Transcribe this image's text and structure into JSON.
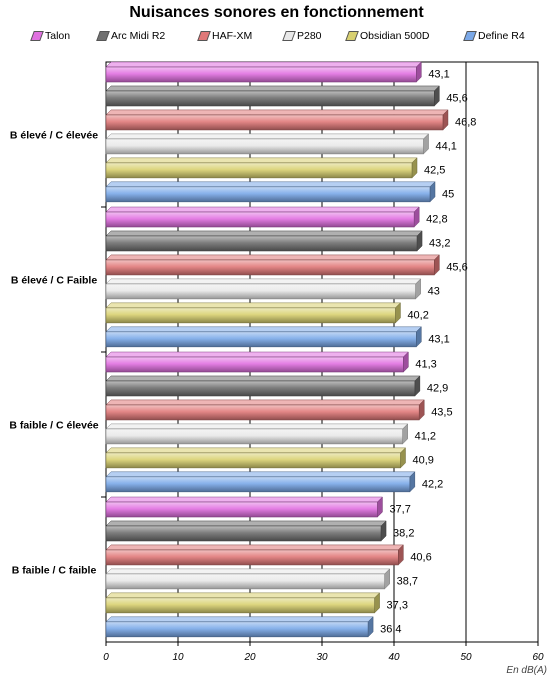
{
  "chart_data": {
    "type": "bar",
    "orientation": "horizontal",
    "title": "Nuisances sonores en fonctionnement",
    "unit_label": "En dB(A)",
    "categories": [
      "B élevé / C élevée",
      "B élevé / C Faible",
      "B faible / C élevée",
      "B faible / C faible"
    ],
    "series": [
      {
        "name": "Talon",
        "color": "#e070e0",
        "values": [
          43.1,
          42.8,
          41.3,
          37.7
        ]
      },
      {
        "name": "Arc Midi R2",
        "color": "#707070",
        "values": [
          45.6,
          43.2,
          42.9,
          38.2
        ]
      },
      {
        "name": "HAF-XM",
        "color": "#e07878",
        "values": [
          46.8,
          45.6,
          43.5,
          40.6
        ]
      },
      {
        "name": "P280",
        "color": "#e8e8e8",
        "values": [
          44.1,
          43,
          41.2,
          38.7
        ]
      },
      {
        "name": "Obsidian 500D",
        "color": "#d8d070",
        "values": [
          42.5,
          40.2,
          40.9,
          37.3
        ]
      },
      {
        "name": "Define R4",
        "color": "#7aa8e8",
        "values": [
          45,
          43.1,
          42.2,
          36.4
        ]
      }
    ],
    "value_labels": [
      [
        "43,1",
        "45,6",
        "46,8",
        "44,1",
        "42,5",
        "45"
      ],
      [
        "42,8",
        "43,2",
        "45,6",
        "43",
        "40,2",
        "43,1"
      ],
      [
        "41,3",
        "42,9",
        "43,5",
        "41,2",
        "40,9",
        "42,2"
      ],
      [
        "37,7",
        "38,2",
        "40,6",
        "38,7",
        "37,3",
        "36,4"
      ]
    ],
    "xlim": [
      0,
      60
    ],
    "xticks": [
      "0",
      "10",
      "20",
      "30",
      "40",
      "50",
      "60"
    ],
    "grid": true,
    "legend_position": "top"
  }
}
